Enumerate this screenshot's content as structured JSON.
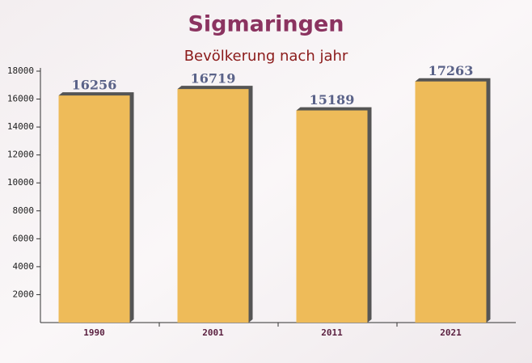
{
  "chart_data": {
    "type": "bar",
    "title": "Sigmaringen",
    "subtitle": "Bevölkerung nach jahr",
    "categories": [
      "1990",
      "2001",
      "2011",
      "2021"
    ],
    "values": [
      16256,
      16719,
      15189,
      17263
    ],
    "color": "#ffc65a",
    "ylim": [
      0,
      18000
    ],
    "yticks": [
      2000,
      4000,
      6000,
      8000,
      10000,
      12000,
      14000,
      16000,
      18000
    ]
  }
}
